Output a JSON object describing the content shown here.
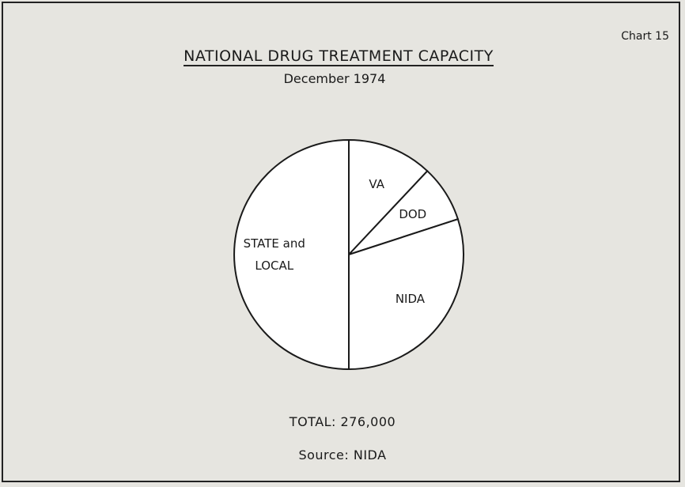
{
  "chart_data": {
    "type": "pie",
    "chart_label": "Chart 15",
    "title": "NATIONAL DRUG TREATMENT CAPACITY",
    "subtitle": "December 1974",
    "categories": [
      "VA",
      "DOD",
      "NIDA",
      "STATE and LOCAL"
    ],
    "values": [
      12,
      8,
      30,
      50
    ],
    "color": "#ffffff",
    "total": "TOTAL: 276,000",
    "source": "Source: NIDA"
  }
}
